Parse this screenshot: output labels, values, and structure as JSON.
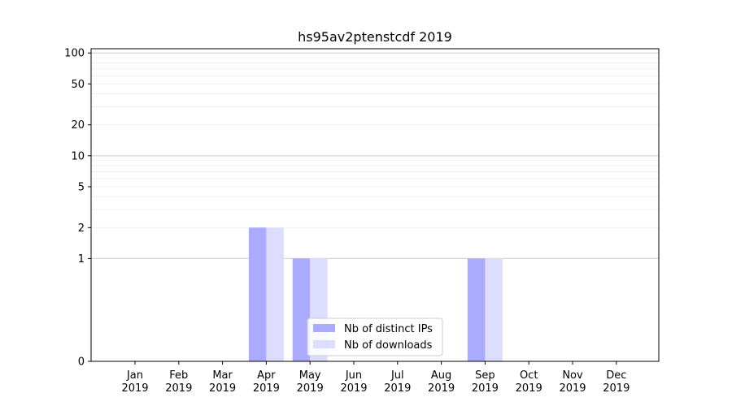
{
  "chart_data": {
    "type": "bar",
    "title": "hs95av2ptenstcdf 2019",
    "xlabel": "",
    "ylabel": "",
    "categories": [
      "Jan\n2019",
      "Feb\n2019",
      "Mar\n2019",
      "Apr\n2019",
      "May\n2019",
      "Jun\n2019",
      "Jul\n2019",
      "Aug\n2019",
      "Sep\n2019",
      "Oct\n2019",
      "Nov\n2019",
      "Dec\n2019"
    ],
    "series": [
      {
        "name": "Nb of distinct IPs",
        "values": [
          0,
          0,
          0,
          2,
          1,
          0,
          0,
          0,
          1,
          0,
          0,
          0
        ],
        "color": "#aaaaff"
      },
      {
        "name": "Nb of downloads",
        "values": [
          0,
          0,
          0,
          2,
          1,
          0,
          0,
          0,
          1,
          0,
          0,
          0
        ],
        "color": "#ddddff"
      }
    ],
    "yscale": "symlog",
    "ylim": [
      0,
      110
    ],
    "yticks": [
      0,
      1,
      2,
      5,
      10,
      20,
      50,
      100
    ],
    "ytick_labels": [
      "0",
      "1",
      "2",
      "5",
      "10",
      "20",
      "50",
      "100"
    ],
    "grid": true,
    "legend_position": "lower-center"
  }
}
